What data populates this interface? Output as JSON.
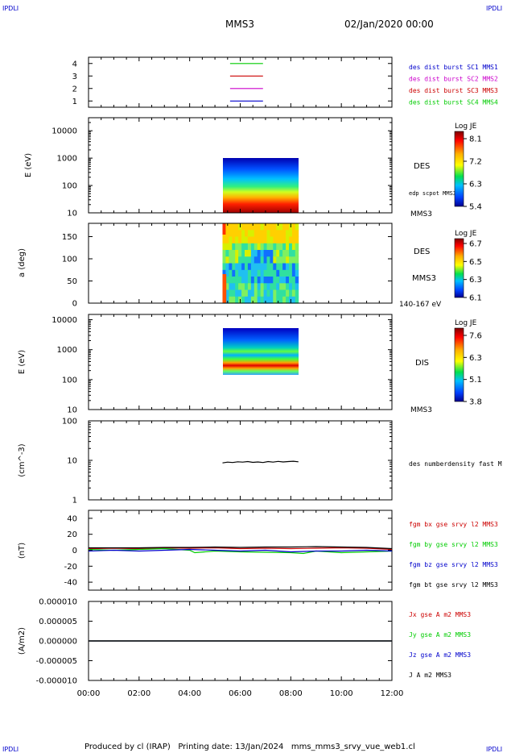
{
  "header": {
    "corner_tl": "IPDLI",
    "corner_tr": "IPDLI",
    "corner_bl": "IPDLI",
    "corner_br": "IPDLI",
    "title": "MMS3",
    "date": "02/Jan/2020 00:00"
  },
  "footer": {
    "text": "Produced by cl (IRAP)   Printing date: 13/Jan/2024   mms_mms3_srvy_vue_web1.cl"
  },
  "colors": {
    "blue": "#0000cc",
    "magenta": "#cc00cc",
    "red": "#cc0000",
    "green": "#00cc00",
    "black": "#000000"
  },
  "chart_data": [
    {
      "type": "line",
      "panel": "burst_availability",
      "ylim": [
        0.5,
        4.5
      ],
      "yticks": [
        1,
        2,
        3,
        4
      ],
      "series": [
        {
          "name": "des dist burst SC1 MMS1",
          "color": "#0000cc",
          "y": 1,
          "x": [
            5.6,
            6.9
          ]
        },
        {
          "name": "des dist burst SC2 MMS2",
          "color": "#cc00cc",
          "y": 2,
          "x": [
            5.6,
            6.9
          ]
        },
        {
          "name": "des dist burst SC3 MMS3",
          "color": "#cc0000",
          "y": 3,
          "x": [
            5.6,
            6.9
          ]
        },
        {
          "name": "des dist burst SC4 MMS4",
          "color": "#00cc00",
          "y": 4,
          "x": [
            5.6,
            6.9
          ]
        }
      ]
    },
    {
      "type": "heatmap",
      "panel": "des_energy",
      "ylabel": "E (eV)",
      "yscale": "log",
      "ylim": [
        10,
        30000
      ],
      "yticks": [
        10,
        100,
        1000,
        10000
      ],
      "data_x": [
        5.3,
        8.3
      ],
      "data_y": [
        10,
        1000
      ],
      "label": "DES",
      "sublabel": "edp scpot MMS3",
      "bottom_label": "MMS3",
      "colorbar": {
        "title": "Log JE",
        "ticks": [
          8.1,
          7.2,
          6.3,
          5.4
        ]
      }
    },
    {
      "type": "heatmap",
      "panel": "des_pitch",
      "ylabel": "a (deg)",
      "ylim": [
        0,
        180
      ],
      "yticks": [
        0,
        50,
        100,
        150
      ],
      "data_x": [
        5.3,
        8.3
      ],
      "label": "DES",
      "sublabel": "MMS3",
      "bottom_label": "140-167 eV",
      "colorbar": {
        "title": "Log JE",
        "ticks": [
          6.7,
          6.5,
          6.3,
          6.1
        ]
      }
    },
    {
      "type": "heatmap",
      "panel": "dis_energy",
      "ylabel": "E (eV)",
      "yscale": "log",
      "ylim": [
        10,
        15000
      ],
      "yticks": [
        10,
        100,
        1000,
        10000
      ],
      "data_x": [
        5.3,
        8.3
      ],
      "data_y": [
        200,
        10000
      ],
      "label": "DIS",
      "bottom_label": "MMS3",
      "colorbar": {
        "title": "Log JE",
        "ticks": [
          7.6,
          6.3,
          5.1,
          3.8
        ]
      }
    },
    {
      "type": "line",
      "panel": "density",
      "ylabel": "(cm^-3)",
      "yscale": "log",
      "ylim": [
        1,
        100
      ],
      "yticks": [
        1,
        10,
        100
      ],
      "series": [
        {
          "name": "des numberdensity fast M",
          "color": "#000000",
          "x": [
            5.3,
            5.5,
            5.7,
            5.9,
            6.1,
            6.3,
            6.5,
            6.7,
            6.9,
            7.1,
            7.3,
            7.5,
            7.7,
            7.9,
            8.1,
            8.3
          ],
          "y": [
            8.6,
            9.0,
            8.8,
            9.2,
            9.0,
            9.3,
            8.9,
            9.1,
            8.8,
            9.3,
            9.0,
            9.4,
            9.1,
            9.3,
            9.5,
            9.2
          ]
        }
      ]
    },
    {
      "type": "line",
      "panel": "fgm",
      "ylabel": "(nT)",
      "ylim": [
        -50,
        50
      ],
      "yticks": [
        -40,
        -20,
        0,
        20,
        40
      ],
      "series": [
        {
          "name": "fgm bx gse srvy l2 MMS3",
          "color": "#cc0000",
          "x": [
            0,
            1,
            2,
            3,
            4,
            5,
            6,
            7,
            8,
            9,
            10,
            11,
            12
          ],
          "y": [
            2,
            2.5,
            2,
            3,
            2.5,
            3,
            2,
            2.5,
            2,
            2.5,
            3,
            2.5,
            1
          ]
        },
        {
          "name": "fgm by gse srvy l2 MMS3",
          "color": "#00cc00",
          "x": [
            0,
            1,
            2,
            3,
            4,
            4.2,
            5,
            6,
            7,
            8,
            8.5,
            9,
            10,
            11,
            12
          ],
          "y": [
            1,
            0,
            1,
            2,
            0,
            -3,
            -1,
            -2,
            -2.5,
            -3,
            -4,
            -1,
            -3,
            -2,
            -1
          ]
        },
        {
          "name": "fgm bz gse srvy l2 MMS3",
          "color": "#0000cc",
          "x": [
            0,
            1,
            2,
            3,
            4,
            5,
            6,
            7,
            8,
            9,
            10,
            11,
            12
          ],
          "y": [
            -1,
            0,
            -1,
            0,
            1,
            0,
            -1,
            0,
            -2,
            -1,
            -1,
            0,
            -1
          ]
        },
        {
          "name": "fgm bt gse srvy l2 MMS3",
          "color": "#000000",
          "x": [
            0,
            1,
            2,
            3,
            4,
            5,
            6,
            7,
            8,
            9,
            10,
            11,
            12
          ],
          "y": [
            3,
            3,
            3,
            3.5,
            3.5,
            4,
            3.5,
            4,
            4,
            4.5,
            4,
            3.5,
            2
          ]
        }
      ]
    },
    {
      "type": "line",
      "panel": "current",
      "ylabel": "(A/m2)",
      "ylim": [
        -1e-05,
        1e-05
      ],
      "ytick_labels": [
        "0.000010",
        "0.000005",
        "0.000000",
        "-0.000005",
        "-0.000010"
      ],
      "yticks": [
        1e-05,
        5e-06,
        0,
        -5e-06,
        -1e-05
      ],
      "xticks": [
        "00:00",
        "02:00",
        "04:00",
        "06:00",
        "08:00",
        "10:00",
        "12:00"
      ],
      "xlim": [
        0,
        12
      ],
      "series": [
        {
          "name": "Jx gse A m2 MMS3",
          "color": "#cc0000",
          "x": [
            0,
            12
          ],
          "y": [
            0,
            0
          ]
        },
        {
          "name": "Jy gse A m2 MMS3",
          "color": "#00cc00",
          "x": [
            0,
            12
          ],
          "y": [
            0,
            0
          ]
        },
        {
          "name": "Jz gse A m2 MMS3",
          "color": "#0000cc",
          "x": [
            0,
            12
          ],
          "y": [
            0,
            0
          ]
        },
        {
          "name": "J A m2 MMS3",
          "color": "#000000",
          "x": [
            0,
            12
          ],
          "y": [
            0,
            0
          ]
        }
      ]
    }
  ]
}
